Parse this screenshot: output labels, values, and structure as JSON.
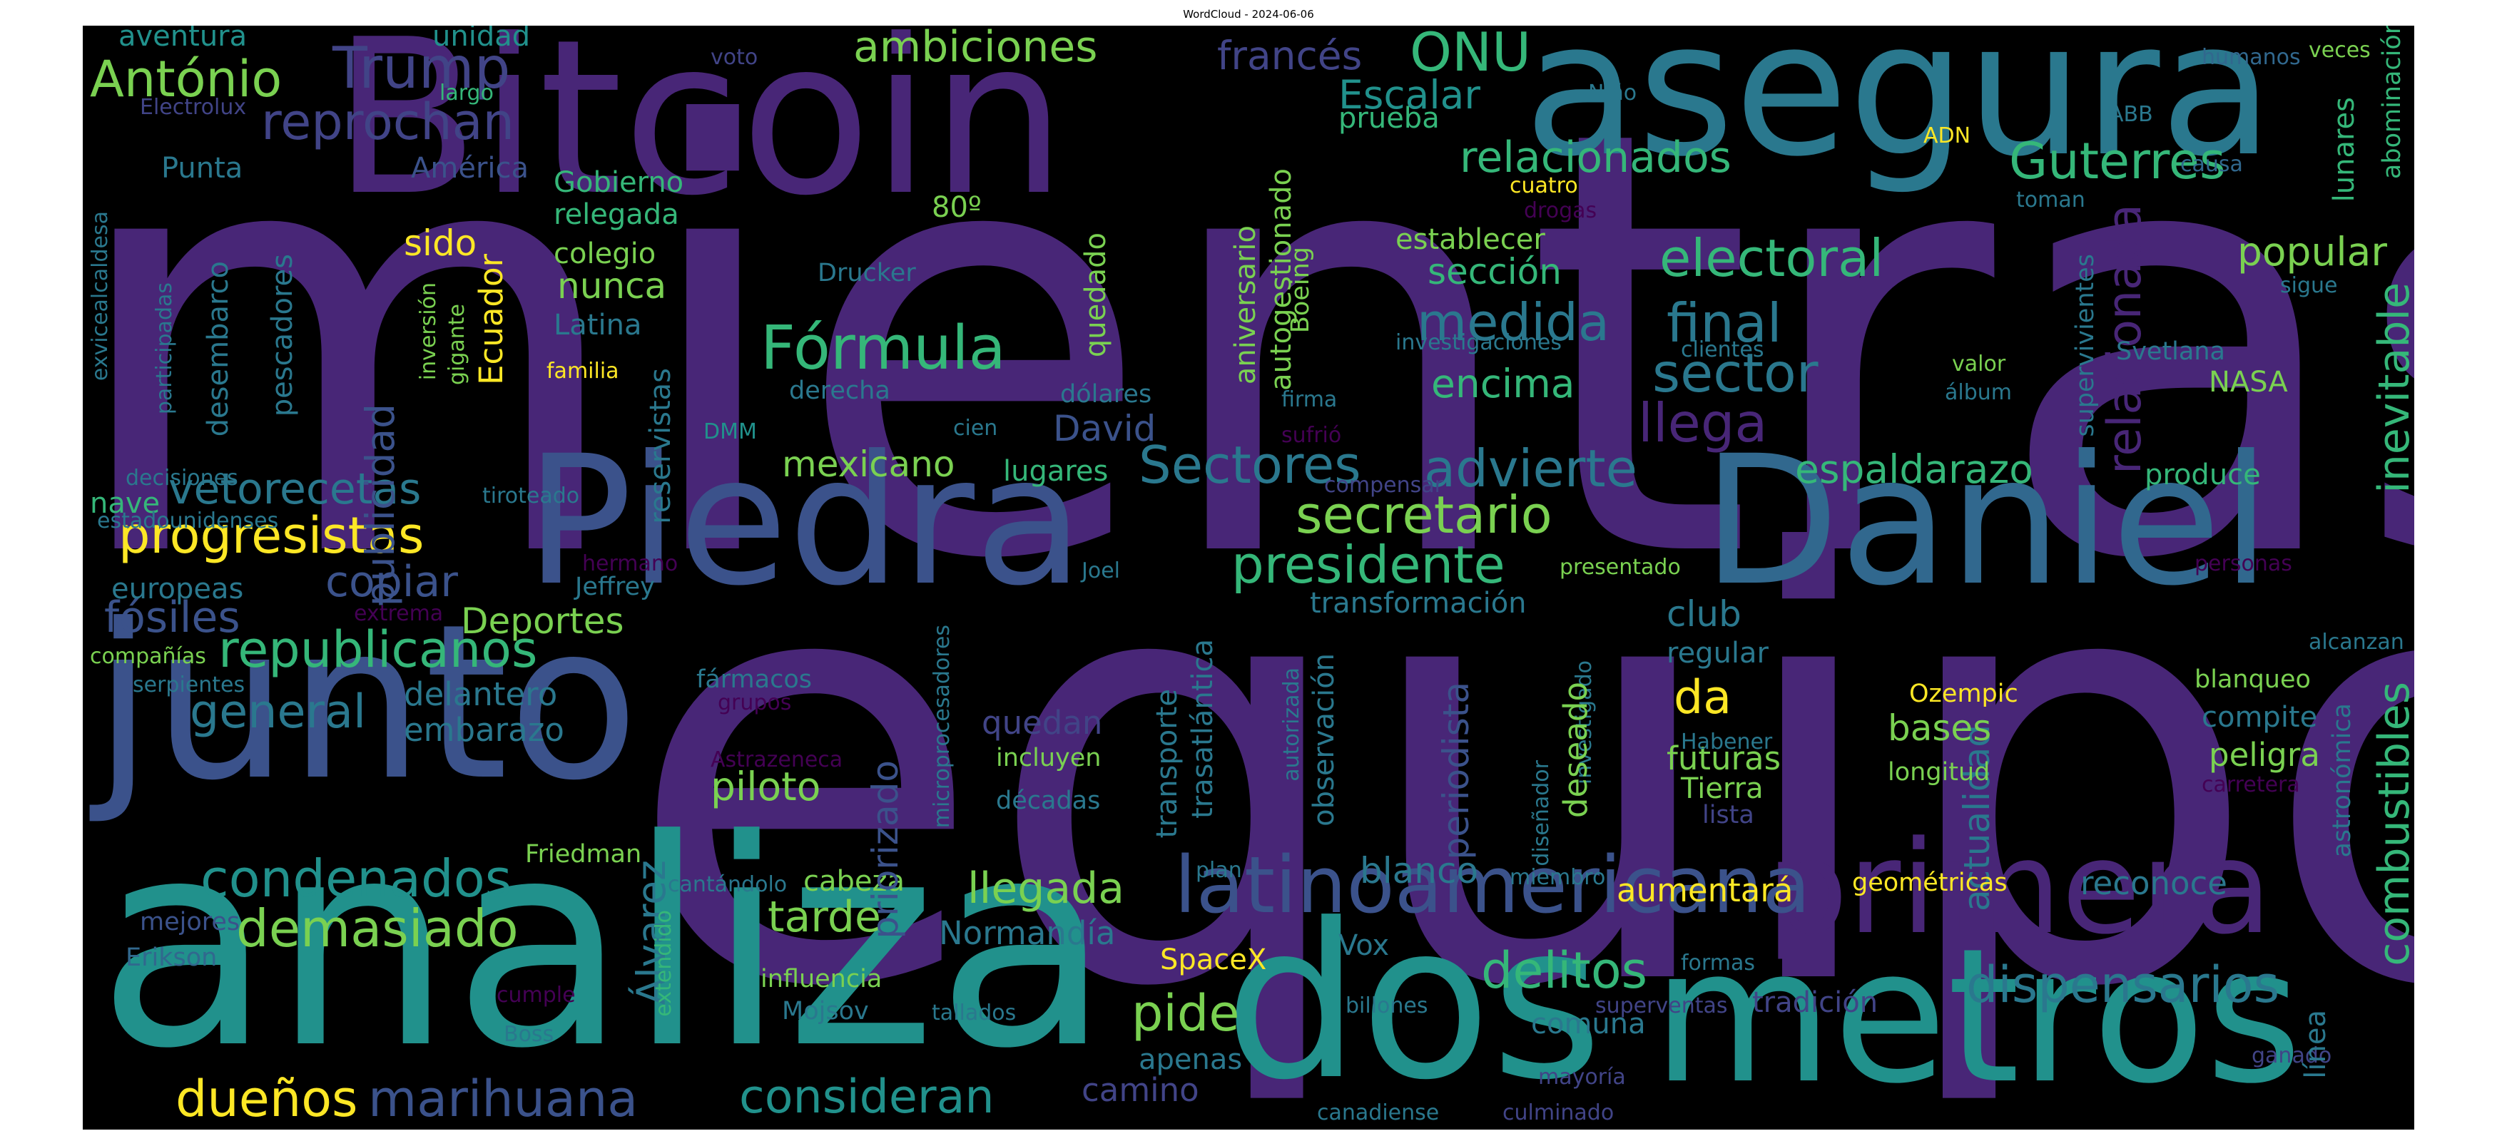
{
  "title": "WordCloud - 2024-06-06",
  "words": [
    "mientras",
    "equipo",
    "Bitcoin",
    "asegura",
    "analiza",
    "junto",
    "Piedra",
    "Daniel",
    "metros",
    "dos",
    "primera",
    "latinoamericana",
    "Fórmula",
    "Trump",
    "António",
    "reprochan",
    "ambiciones",
    "ONU",
    "relacionados",
    "Guterres",
    "electoral",
    "progresistas",
    "republicanos",
    "condenados",
    "demasiado",
    "dueños",
    "marihuana",
    "consideran",
    "presidente",
    "secretario",
    "advierte",
    "Sectores",
    "medida",
    "final",
    "sector",
    "llega",
    "encima",
    "espaldarazo",
    "dispensarios",
    "combustibles",
    "inevitable",
    "relacionada",
    "delitos",
    "pide",
    "llegada",
    "tarde",
    "cabeza",
    "mexicano",
    "vetorecetas",
    "copiar",
    "fósiles",
    "general",
    "delantero",
    "embarazo",
    "Deportes",
    "publicidad",
    "priorizado",
    "periodista",
    "actualidad",
    "blanco",
    "nunca",
    "sido",
    "colegio",
    "Gobierno",
    "relegada",
    "sección",
    "establecer",
    "popular",
    "NASA",
    "produce",
    "club",
    "regular",
    "da",
    "futuras",
    "Tierra",
    "lista",
    "bases",
    "peligra",
    "compite",
    "Ozempic",
    "longitud",
    "Escalar",
    "prueba",
    "francés",
    "América",
    "Punta",
    "aventura",
    "unidad",
    "largo",
    "voto",
    "Electrolux",
    "Niño",
    "ADN",
    "ABB",
    "humanos",
    "veces",
    "causa",
    "lunares",
    "abominación",
    "cuatro",
    "drogas",
    "toman",
    "supervivientes",
    "sigue",
    "Svetlana",
    "valor",
    "álbum",
    "clientes",
    "investigaciones",
    "Boeing",
    "firma",
    "aniversario",
    "autogestionado",
    "quedado",
    "Drucker",
    "dólares",
    "derecha",
    "cien",
    "lugares",
    "David",
    "sufrió",
    "compensar",
    "DMM",
    "tiroteado",
    "reservistas",
    "pescadores",
    "desembarco",
    "participadas",
    "exvicealcaldesa",
    "decisiones",
    "nave",
    "estadounidenses",
    "europeas",
    "hermano",
    "Jeffrey",
    "Joel",
    "presentado",
    "personas",
    "extrema",
    "compañías",
    "serpientes",
    "fármacos",
    "grupos",
    "microprocesadores",
    "transformación",
    "observación",
    "autorizada",
    "investigado",
    "diseñador",
    "deseado",
    "trasatlántica",
    "transporte",
    "quedan",
    "incluyen",
    "Astrazeneca",
    "décadas",
    "Habener",
    "astronómica",
    "carretera",
    "blanqueo",
    "alcanzan",
    "piloto",
    "Álvarez",
    "Normandía",
    "SpaceX",
    "Vox",
    "comuna",
    "aumentará",
    "geométricas",
    "reconoce",
    "tradición",
    "superventas",
    "mayoría",
    "culminado",
    "ganado",
    "línea",
    "apenas",
    "camino",
    "tallados",
    "billones",
    "canadiense",
    "formas",
    "Friedman",
    "mejores",
    "Erikson",
    "cantándolo",
    "extendido",
    "influencia",
    "Mojsov",
    "cumple",
    "Boss",
    "plan",
    "miembro",
    "inversión",
    "gigante",
    "Ecuador",
    "familia",
    "Latina",
    "80º"
  ]
}
